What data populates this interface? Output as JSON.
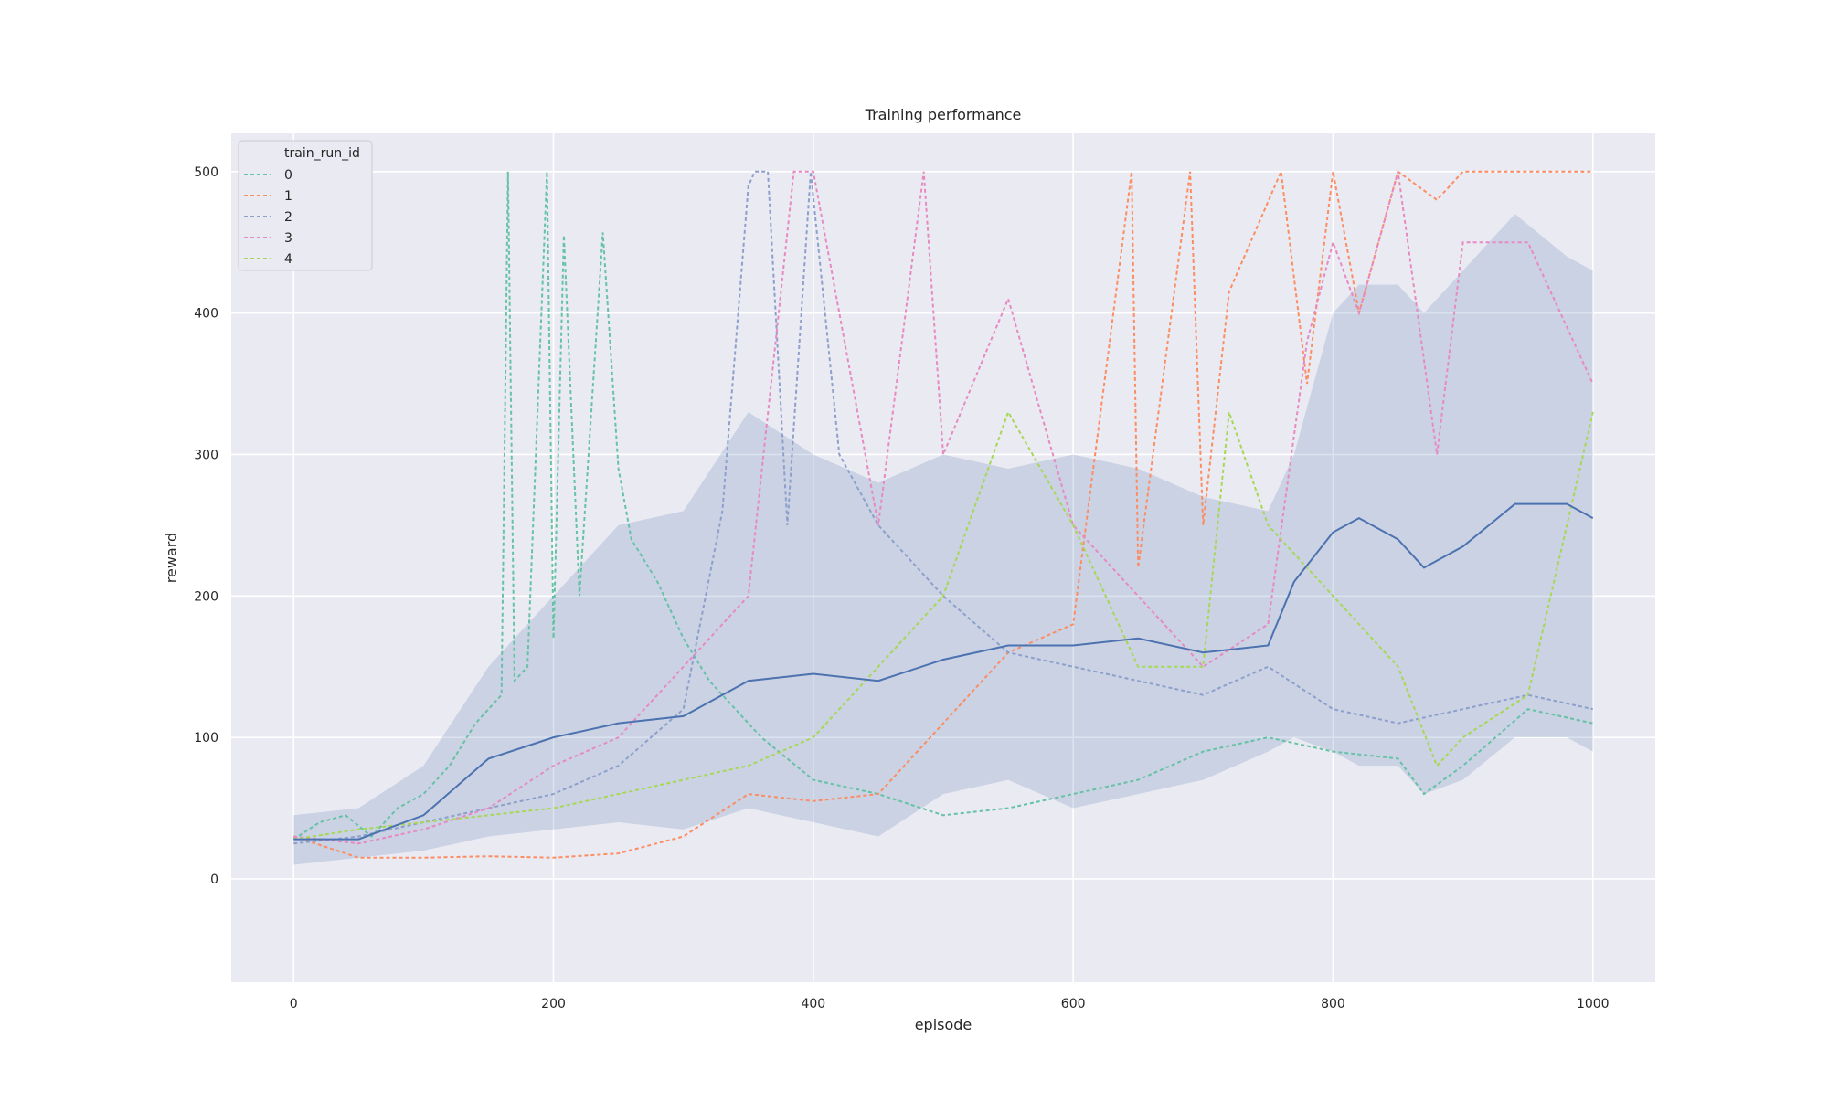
{
  "chart_data": {
    "type": "line",
    "title": "Training performance",
    "xlabel": "episode",
    "ylabel": "reward",
    "xlim": [
      -48,
      1048
    ],
    "ylim": [
      -73,
      527
    ],
    "x_ticks": [
      0,
      200,
      400,
      600,
      800,
      1000
    ],
    "y_ticks": [
      0,
      100,
      200,
      300,
      400,
      500
    ],
    "grid": true,
    "legend": {
      "title": "train_run_id",
      "placement": "top-left",
      "entries": [
        "0",
        "1",
        "2",
        "3",
        "4"
      ]
    },
    "mean_color": "#4c72b0",
    "band_color": "#4c72b0",
    "series": [
      {
        "name": "0",
        "color": "#66c2a5",
        "dashed": true,
        "x": [
          0,
          20,
          40,
          60,
          80,
          100,
          120,
          140,
          160,
          165,
          170,
          180,
          195,
          200,
          208,
          220,
          238,
          250,
          260,
          280,
          300,
          320,
          340,
          360,
          400,
          450,
          500,
          550,
          600,
          650,
          700,
          750,
          800,
          850,
          870,
          900,
          950,
          1000
        ],
        "y": [
          28,
          40,
          45,
          30,
          50,
          60,
          80,
          110,
          130,
          500,
          140,
          150,
          500,
          170,
          455,
          200,
          457,
          290,
          240,
          210,
          170,
          140,
          120,
          100,
          70,
          60,
          45,
          50,
          60,
          70,
          90,
          100,
          90,
          85,
          60,
          80,
          120,
          110
        ]
      },
      {
        "name": "1",
        "color": "#fc8d62",
        "dashed": true,
        "x": [
          0,
          50,
          100,
          150,
          200,
          250,
          300,
          350,
          400,
          450,
          500,
          550,
          600,
          645,
          650,
          690,
          700,
          720,
          760,
          780,
          800,
          820,
          850,
          880,
          900,
          950,
          1000
        ],
        "y": [
          30,
          15,
          15,
          16,
          15,
          18,
          30,
          60,
          55,
          60,
          110,
          160,
          180,
          500,
          220,
          500,
          250,
          415,
          500,
          350,
          500,
          400,
          500,
          480,
          500,
          500,
          500
        ]
      },
      {
        "name": "2",
        "color": "#8da0cb",
        "dashed": true,
        "x": [
          0,
          50,
          100,
          150,
          200,
          250,
          300,
          330,
          350,
          355,
          365,
          380,
          398,
          420,
          450,
          500,
          550,
          600,
          650,
          700,
          750,
          800,
          850,
          900,
          950,
          1000
        ],
        "y": [
          25,
          30,
          40,
          50,
          60,
          80,
          120,
          260,
          490,
          500,
          500,
          250,
          500,
          300,
          250,
          200,
          160,
          150,
          140,
          130,
          150,
          120,
          110,
          120,
          130,
          120
        ]
      },
      {
        "name": "3",
        "color": "#e78ac3",
        "dashed": true,
        "x": [
          0,
          50,
          100,
          150,
          200,
          250,
          300,
          350,
          385,
          400,
          420,
          450,
          485,
          500,
          550,
          600,
          650,
          700,
          750,
          780,
          800,
          820,
          850,
          880,
          900,
          950,
          1000
        ],
        "y": [
          30,
          25,
          35,
          50,
          80,
          100,
          150,
          200,
          500,
          500,
          400,
          250,
          500,
          300,
          410,
          250,
          200,
          150,
          180,
          380,
          450,
          400,
          500,
          300,
          450,
          450,
          350
        ]
      },
      {
        "name": "4",
        "color": "#a6d854",
        "dashed": true,
        "x": [
          0,
          50,
          100,
          150,
          200,
          250,
          300,
          350,
          400,
          450,
          500,
          550,
          600,
          650,
          700,
          720,
          750,
          800,
          850,
          880,
          900,
          950,
          1000
        ],
        "y": [
          28,
          35,
          40,
          45,
          50,
          60,
          70,
          80,
          100,
          150,
          200,
          330,
          250,
          150,
          150,
          330,
          250,
          200,
          150,
          80,
          100,
          130,
          330
        ]
      }
    ],
    "mean": {
      "x": [
        0,
        50,
        100,
        150,
        200,
        250,
        300,
        350,
        400,
        450,
        500,
        550,
        600,
        650,
        700,
        750,
        770,
        800,
        820,
        850,
        870,
        900,
        940,
        980,
        1000
      ],
      "y": [
        28,
        28,
        45,
        85,
        100,
        110,
        115,
        140,
        145,
        140,
        155,
        165,
        165,
        170,
        160,
        165,
        210,
        245,
        255,
        240,
        220,
        235,
        265,
        265,
        255
      ],
      "lower": [
        10,
        15,
        20,
        30,
        35,
        40,
        35,
        50,
        40,
        30,
        60,
        70,
        50,
        60,
        70,
        90,
        100,
        90,
        80,
        80,
        60,
        70,
        100,
        100,
        90
      ],
      "upper": [
        45,
        50,
        80,
        150,
        200,
        250,
        260,
        330,
        300,
        280,
        300,
        290,
        300,
        290,
        270,
        260,
        300,
        400,
        420,
        420,
        400,
        430,
        470,
        440,
        430
      ]
    }
  }
}
